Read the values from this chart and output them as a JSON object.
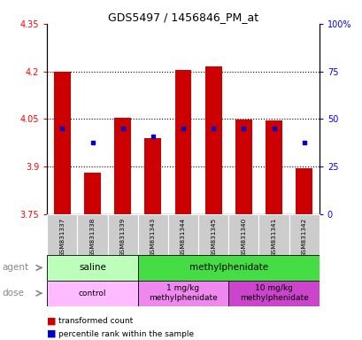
{
  "title": "GDS5497 / 1456846_PM_at",
  "samples": [
    "GSM831337",
    "GSM831338",
    "GSM831339",
    "GSM831343",
    "GSM831344",
    "GSM831345",
    "GSM831340",
    "GSM831341",
    "GSM831342"
  ],
  "bar_values": [
    4.2,
    3.88,
    4.055,
    3.99,
    4.205,
    4.215,
    4.047,
    4.045,
    3.895
  ],
  "percentile_values": [
    4.02,
    3.975,
    4.02,
    3.995,
    4.02,
    4.02,
    4.02,
    4.02,
    3.975
  ],
  "ymin": 3.75,
  "ymax": 4.35,
  "bar_color": "#cc0000",
  "blue_color": "#0000cc",
  "agent_groups": [
    {
      "label": "saline",
      "span": [
        0,
        3
      ],
      "color": "#bbffbb"
    },
    {
      "label": "methylphenidate",
      "span": [
        3,
        9
      ],
      "color": "#44dd44"
    }
  ],
  "dose_groups": [
    {
      "label": "control",
      "span": [
        0,
        3
      ],
      "color": "#ffbbff"
    },
    {
      "label": "1 mg/kg\nmethylphenidate",
      "span": [
        3,
        6
      ],
      "color": "#ee88ee"
    },
    {
      "label": "10 mg/kg\nmethylphenidate",
      "span": [
        6,
        9
      ],
      "color": "#cc44cc"
    }
  ],
  "right_axis_labels": [
    "0",
    "25",
    "50",
    "75",
    "100%"
  ],
  "right_axis_values": [
    3.75,
    3.9,
    4.05,
    4.2,
    4.35
  ],
  "left_axis_ticks": [
    3.75,
    3.9,
    4.05,
    4.2,
    4.35
  ],
  "left_axis_labels": [
    "3.75",
    "3.9",
    "4.05",
    "4.2",
    "4.35"
  ],
  "dotted_lines": [
    3.9,
    4.05,
    4.2
  ],
  "tick_bg_color": "#cccccc",
  "bar_width": 0.55
}
